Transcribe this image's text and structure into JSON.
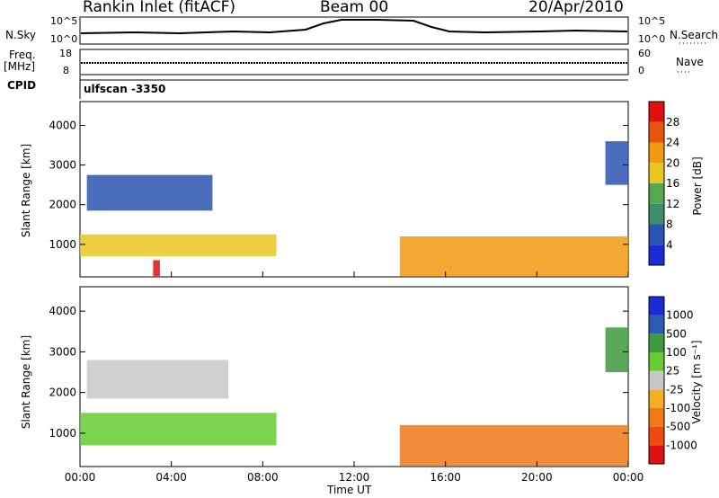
{
  "header": {
    "station": "Rankin Inlet (fitACF)",
    "beam": "Beam 00",
    "date": "20/Apr/2010"
  },
  "left_labels": {
    "nsky": "N.Sky",
    "freq": "Freq.",
    "freq_unit": "[MHz]",
    "cpid": "CPID"
  },
  "right_labels": {
    "nsearch": "N.Search",
    "nave": "Nave"
  },
  "strip_ticks": {
    "nsky_top": "10^5",
    "nsky_bottom": "10^0",
    "freq_top": "18",
    "freq_bottom": "8",
    "nave_top": "60",
    "nave_bottom": "0"
  },
  "program": "ulfscan -3350",
  "colors": {
    "power_scale": [
      "#1a2bd8",
      "#2a55b0",
      "#3a8f6e",
      "#56a84e",
      "#e8c820",
      "#ef9a10",
      "#e85510",
      "#e01010"
    ],
    "velocity_scale": [
      "#e01010",
      "#ef4a10",
      "#f07a18",
      "#f4b020",
      "#c8c8c8",
      "#66cc33",
      "#3d9a3d",
      "#2a5cb0",
      "#1a2bd8"
    ]
  },
  "chart_data": [
    {
      "type": "heatmap",
      "panel": "power",
      "ylabel": "Slant Range [km]",
      "yticks": [
        "1000",
        "2000",
        "3000",
        "4000"
      ],
      "ylim": [
        180,
        4600
      ],
      "xlim": [
        0,
        24
      ],
      "colorbar_label": "Power [dB]",
      "colorbar_ticks": [
        "4",
        "8",
        "12",
        "16",
        "20",
        "24",
        "28"
      ],
      "regions": [
        {
          "t0": 0.0,
          "t1": 8.6,
          "r0": 700,
          "r1": 1250,
          "value": 18
        },
        {
          "t0": 0.3,
          "t1": 5.8,
          "r0": 1850,
          "r1": 2750,
          "value": 7
        },
        {
          "t0": 3.2,
          "t1": 3.5,
          "r0": 200,
          "r1": 600,
          "value": 28
        },
        {
          "t0": 14.0,
          "t1": 24.0,
          "r0": 200,
          "r1": 1200,
          "value": 22
        },
        {
          "t0": 23.0,
          "t1": 24.0,
          "r0": 2500,
          "r1": 3600,
          "value": 5
        }
      ]
    },
    {
      "type": "heatmap",
      "panel": "velocity",
      "ylabel": "Slant Range [km]",
      "yticks": [
        "1000",
        "2000",
        "3000",
        "4000"
      ],
      "ylim": [
        180,
        4600
      ],
      "xlim": [
        0,
        24
      ],
      "xlabel": "Time UT",
      "xticks": [
        "00:00",
        "04:00",
        "08:00",
        "12:00",
        "16:00",
        "20:00",
        "00:00"
      ],
      "colorbar_label": "Velocity [m s⁻¹]",
      "colorbar_ticks": [
        "1000",
        "500",
        "100",
        "25",
        "-25",
        "-100",
        "-500",
        "-1000"
      ],
      "regions": [
        {
          "t0": 0.0,
          "t1": 8.6,
          "r0": 700,
          "r1": 1500,
          "value": 100
        },
        {
          "t0": 0.3,
          "t1": 6.5,
          "r0": 1850,
          "r1": 2800,
          "value": 0
        },
        {
          "t0": 14.0,
          "t1": 24.0,
          "r0": 200,
          "r1": 1200,
          "value": -100
        },
        {
          "t0": 23.0,
          "t1": 24.0,
          "r0": 2500,
          "r1": 3600,
          "value": 200
        }
      ]
    }
  ]
}
